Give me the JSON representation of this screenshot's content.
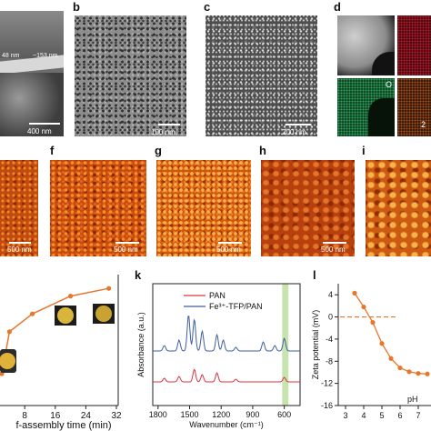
{
  "panel_labels": {
    "b": "b",
    "c": "c",
    "d": "d",
    "f": "f",
    "g": "g",
    "h": "h",
    "i": "i",
    "k": "k",
    "l": "l"
  },
  "sem": {
    "a": {
      "scale": "400 nm",
      "meas1": "48 nm",
      "meas2": "~153 nm"
    },
    "b": {
      "scale": "100 nm"
    },
    "c": {
      "scale": "200 nm"
    },
    "d": {
      "map_o": "O",
      "map_2": "2"
    }
  },
  "afm": {
    "e": "500 nm",
    "f": "500 nm",
    "g": "500 nm",
    "h": "500 nm"
  },
  "colors": {
    "pan": "#d9343f",
    "fe_tfp_pan": "#3f5e9c",
    "orange": "#e8772e",
    "highlight": "#b9dc9a"
  },
  "chart_data": [
    {
      "type": "line",
      "panel": "j",
      "xlabel": "f-assembly time (min)",
      "ylabel": "",
      "x_ticks": [
        "8",
        "16",
        "24",
        "32"
      ],
      "xlim": [
        2,
        32
      ],
      "series": [
        {
          "x": [
            2,
            4,
            10,
            20,
            30
          ],
          "y": [
            0.25,
            0.58,
            0.72,
            0.86,
            0.92
          ]
        }
      ]
    },
    {
      "type": "line",
      "panel": "k",
      "xlabel": "Wavenumber (cm⁻¹)",
      "ylabel": "Absorbance (a.u.)",
      "x_ticks": [
        "1800",
        "1500",
        "1200",
        "900",
        "600"
      ],
      "xlim": [
        1850,
        450
      ],
      "highlight": [
        560,
        620
      ],
      "series": [
        {
          "name": "PAN"
        },
        {
          "name": "Fe³⁺-TFP/PAN"
        }
      ]
    },
    {
      "type": "line",
      "panel": "l",
      "xlabel": "pH",
      "ylabel": "Zeta potential (mV)",
      "x_ticks": [
        "3",
        "4",
        "5",
        "6",
        "7"
      ],
      "y_ticks": [
        "4",
        "0",
        "-4",
        "-8",
        "-12",
        "-16"
      ],
      "xlim": [
        2.6,
        7.6
      ],
      "ylim": [
        -16,
        6
      ],
      "zero_line": 0,
      "series": [
        {
          "x": [
            3.5,
            4.0,
            4.5,
            5.0,
            5.5,
            6.0,
            6.5,
            7.0,
            7.5
          ],
          "y": [
            4.3,
            1.8,
            -1.0,
            -4.8,
            -7.5,
            -9.2,
            -9.9,
            -10.2,
            -10.3
          ]
        }
      ]
    }
  ]
}
